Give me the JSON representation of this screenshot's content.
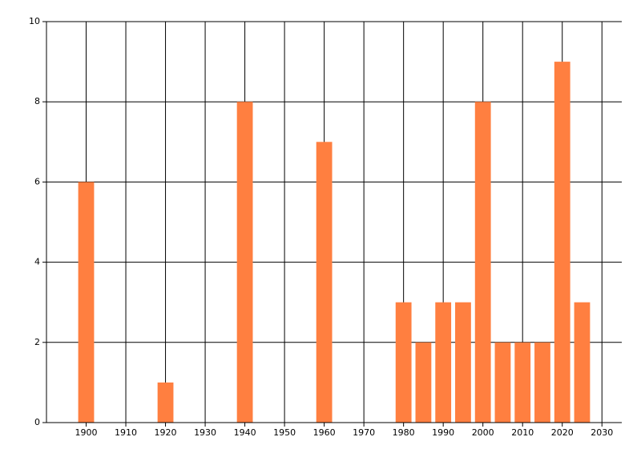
{
  "chart_data": {
    "type": "bar",
    "x": [
      1900,
      1920,
      1940,
      1960,
      1980,
      1985,
      1990,
      1995,
      2000,
      2005,
      2010,
      2015,
      2020,
      2025
    ],
    "values": [
      6,
      1,
      8,
      7,
      3,
      2,
      3,
      3,
      8,
      2,
      2,
      2,
      9,
      3
    ],
    "color": "#ff7f40",
    "xlim": [
      1890,
      2035
    ],
    "xticks": [
      1900,
      1910,
      1920,
      1930,
      1940,
      1950,
      1960,
      1970,
      1980,
      1990,
      2000,
      2010,
      2020,
      2030
    ],
    "ylim": [
      0,
      10
    ],
    "yticks": [
      0,
      2,
      4,
      6,
      8,
      10
    ],
    "grid": true
  }
}
